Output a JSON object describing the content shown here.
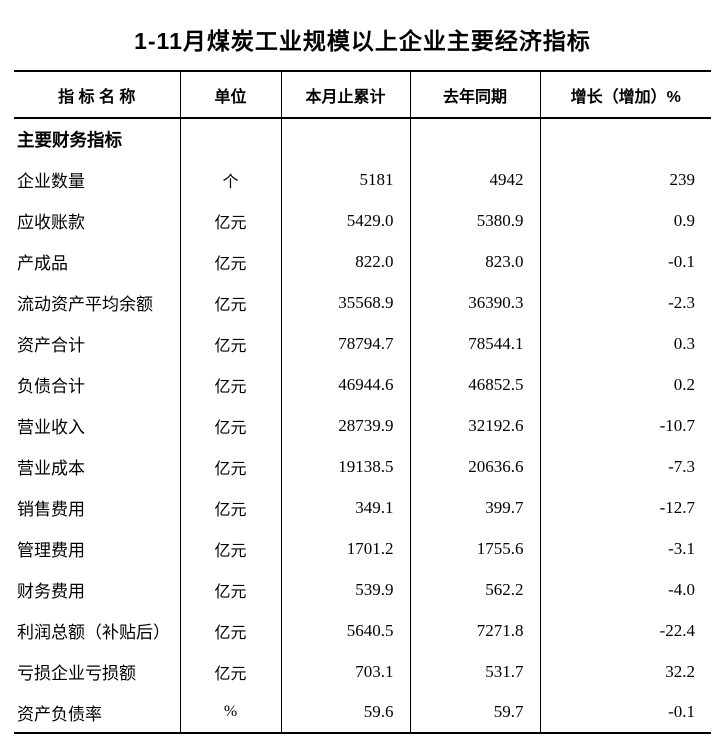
{
  "page_title": "1-11月煤炭工业规模以上企业主要经济指标",
  "colors": {
    "text": "#000000",
    "border": "#000000",
    "background": "#ffffff"
  },
  "table": {
    "columns": [
      "指 标 名 称",
      "单位",
      "本月止累计",
      "去年同期",
      "增长（增加）%"
    ],
    "rows": [
      [
        "主要财务指标",
        "",
        "",
        "",
        ""
      ],
      [
        "企业数量",
        "个",
        "5181",
        "4942",
        "239"
      ],
      [
        "应收账款",
        "亿元",
        "5429.0",
        "5380.9",
        "0.9"
      ],
      [
        "产成品",
        "亿元",
        "822.0",
        "823.0",
        "-0.1"
      ],
      [
        "流动资产平均余额",
        "亿元",
        "35568.9",
        "36390.3",
        "-2.3"
      ],
      [
        "资产合计",
        "亿元",
        "78794.7",
        "78544.1",
        "0.3"
      ],
      [
        "负债合计",
        "亿元",
        "46944.6",
        "46852.5",
        "0.2"
      ],
      [
        "营业收入",
        "亿元",
        "28739.9",
        "32192.6",
        "-10.7"
      ],
      [
        "营业成本",
        "亿元",
        "19138.5",
        "20636.6",
        "-7.3"
      ],
      [
        "销售费用",
        "亿元",
        "349.1",
        "399.7",
        "-12.7"
      ],
      [
        "管理费用",
        "亿元",
        "1701.2",
        "1755.6",
        "-3.1"
      ],
      [
        "财务费用",
        "亿元",
        "539.9",
        "562.2",
        "-4.0"
      ],
      [
        "利润总额（补贴后）",
        "亿元",
        "5640.5",
        "7271.8",
        "-22.4"
      ],
      [
        "亏损企业亏损额",
        "亿元",
        "703.1",
        "531.7",
        "32.2"
      ],
      [
        "资产负债率",
        "%",
        "59.6",
        "59.7",
        "-0.1"
      ]
    ]
  }
}
